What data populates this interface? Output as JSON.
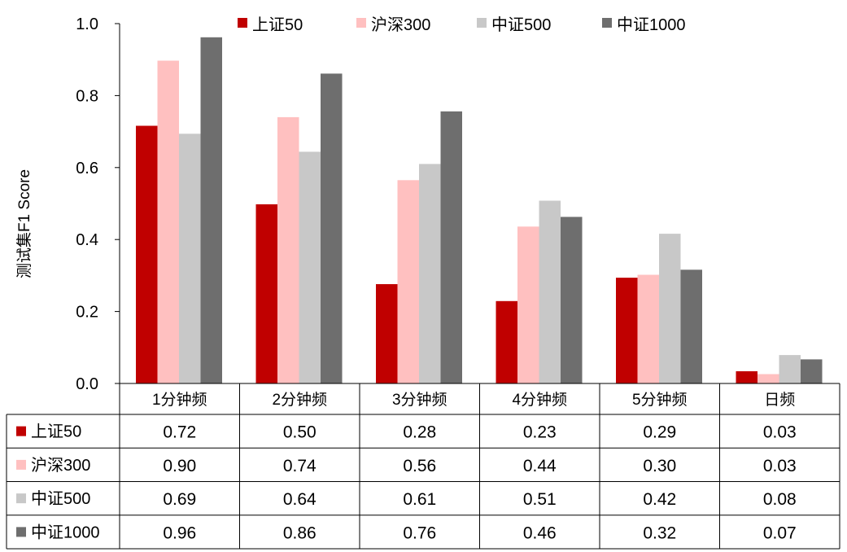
{
  "chart_data": {
    "type": "bar",
    "title": "",
    "xlabel": "",
    "ylabel": "测试集F1 Score",
    "ylim": [
      0,
      1.0
    ],
    "yticks": [
      "0.0",
      "0.2",
      "0.4",
      "0.6",
      "0.8",
      "1.0"
    ],
    "ytick_values": [
      0,
      0.2,
      0.4,
      0.6,
      0.8,
      1.0
    ],
    "categories": [
      "1分钟频",
      "2分钟频",
      "3分钟频",
      "4分钟频",
      "5分钟频",
      "日频"
    ],
    "legend_position": "top",
    "grid": false,
    "data_table": true,
    "series": [
      {
        "name": "上证50",
        "color": "#C00000",
        "values": [
          0.716,
          0.498,
          0.276,
          0.229,
          0.294,
          0.034
        ],
        "labels": [
          "0.72",
          "0.50",
          "0.28",
          "0.23",
          "0.29",
          "0.03"
        ]
      },
      {
        "name": "沪深300",
        "color": "#FFC0C0",
        "values": [
          0.897,
          0.74,
          0.565,
          0.436,
          0.302,
          0.026
        ],
        "labels": [
          "0.90",
          "0.74",
          "0.56",
          "0.44",
          "0.30",
          "0.03"
        ]
      },
      {
        "name": "中证500",
        "color": "#C8C8C8",
        "values": [
          0.694,
          0.644,
          0.61,
          0.508,
          0.416,
          0.079
        ],
        "labels": [
          "0.69",
          "0.64",
          "0.61",
          "0.51",
          "0.42",
          "0.08"
        ]
      },
      {
        "name": "中证1000",
        "color": "#6E6E6E",
        "values": [
          0.962,
          0.861,
          0.756,
          0.463,
          0.316,
          0.067
        ],
        "labels": [
          "0.96",
          "0.86",
          "0.76",
          "0.46",
          "0.32",
          "0.07"
        ]
      }
    ]
  }
}
